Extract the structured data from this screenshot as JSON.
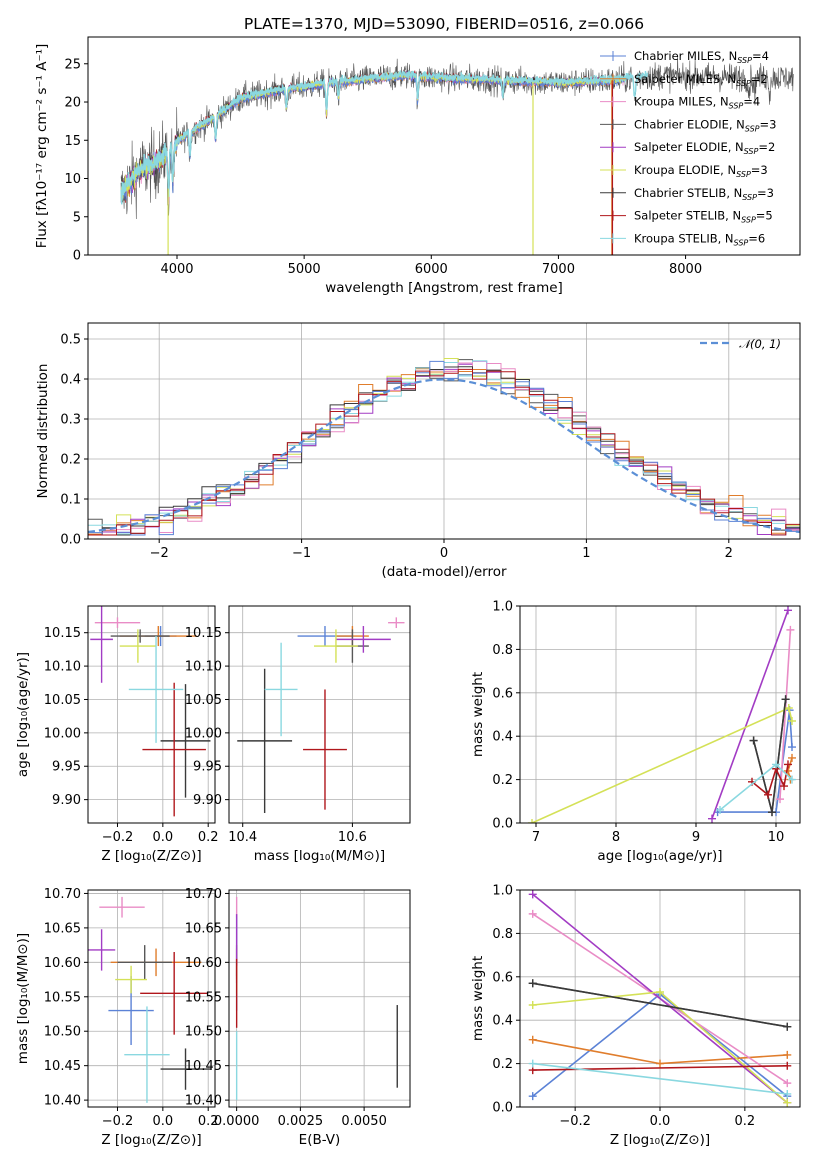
{
  "colors": [
    "#5b82d6",
    "#e07d2c",
    "#e98cc6",
    "#585858",
    "#a23cc4",
    "#d4e157",
    "#3a3a3a",
    "#b0171c",
    "#8ad8e0"
  ],
  "chart_data": [
    {
      "id": "spectrum",
      "type": "line",
      "title": "PLATE=1370, MJD=53090, FIBERID=0516, z=0.066",
      "xlabel": "wavelength [Angstrom, rest frame]",
      "ylabel": "Flux [fλ10⁻¹⁷ erg cm⁻² s⁻¹ A⁻¹]",
      "xlim": [
        3300,
        8900
      ],
      "ylim": [
        0,
        28.5
      ],
      "xticks": [
        4000,
        5000,
        6000,
        7000,
        8000
      ],
      "yticks": [
        0,
        5,
        10,
        15,
        20,
        25
      ],
      "continuum": [
        [
          3560,
          8
        ],
        [
          3700,
          11
        ],
        [
          3850,
          12
        ],
        [
          3950,
          14
        ],
        [
          4050,
          15.5
        ],
        [
          4300,
          18
        ],
        [
          4500,
          20.5
        ],
        [
          4800,
          21.5
        ],
        [
          5000,
          22
        ],
        [
          5200,
          22.5
        ],
        [
          5500,
          23
        ],
        [
          5800,
          23.5
        ],
        [
          6000,
          23.2
        ],
        [
          6300,
          23
        ],
        [
          6600,
          22.8
        ],
        [
          7000,
          22.5
        ],
        [
          7400,
          22.8
        ],
        [
          7800,
          23.5
        ],
        [
          8200,
          23.3
        ],
        [
          8500,
          23.2
        ],
        [
          8850,
          23.2
        ]
      ],
      "absorption_lines": [
        [
          3934,
          6
        ],
        [
          3968,
          5
        ],
        [
          4102,
          3
        ],
        [
          4304,
          3
        ],
        [
          4861,
          2.5
        ],
        [
          5176,
          4
        ],
        [
          5270,
          2
        ],
        [
          5893,
          3
        ],
        [
          6563,
          2
        ],
        [
          7600,
          3
        ],
        [
          8498,
          2
        ],
        [
          8542,
          2
        ],
        [
          8662,
          2
        ]
      ],
      "legend_position": "upper right",
      "legend": [
        {
          "label": "Chabrier MILES, N",
          "sub": "SSP",
          "eq": "=4"
        },
        {
          "label": "Salpeter MILES, N",
          "sub": "SSP",
          "eq": "=2"
        },
        {
          "label": "Kroupa MILES, N",
          "sub": "SSP",
          "eq": "=4"
        },
        {
          "label": "Chabrier ELODIE, N",
          "sub": "SSP",
          "eq": "=3"
        },
        {
          "label": "Salpeter ELODIE, N",
          "sub": "SSP",
          "eq": "=2"
        },
        {
          "label": "Kroupa ELODIE, N",
          "sub": "SSP",
          "eq": "=3"
        },
        {
          "label": "Chabrier STELIB, N",
          "sub": "SSP",
          "eq": "=3"
        },
        {
          "label": "Salpeter STELIB, N",
          "sub": "SSP",
          "eq": "=5"
        },
        {
          "label": "Kroupa STELIB, N",
          "sub": "SSP",
          "eq": "=6"
        }
      ]
    },
    {
      "id": "residuals",
      "type": "histogram",
      "xlabel": "(data-model)/error",
      "ylabel": "Normed distribution",
      "xlim": [
        -2.5,
        2.5
      ],
      "ylim": [
        0,
        0.54
      ],
      "xticks": [
        -2,
        -1,
        0,
        1,
        2
      ],
      "yticks": [
        0.0,
        0.1,
        0.2,
        0.3,
        0.4,
        0.5
      ],
      "bin_width": 0.1,
      "curve_label": "𝒩(0, 1)",
      "legend_position": "upper right"
    },
    {
      "id": "age-vs-Z",
      "type": "errorbar",
      "xlabel": "Z [log₁₀(Z/Z⊙)]",
      "ylabel": "age  [log₁₀(age/yr)]",
      "xlim": [
        -0.33,
        0.23
      ],
      "ylim": [
        9.865,
        10.19
      ],
      "xticks": [
        -0.2,
        0.0,
        0.2
      ],
      "yticks": [
        9.9,
        9.95,
        10.0,
        10.05,
        10.1,
        10.15
      ],
      "points": [
        {
          "x": -0.01,
          "y": 10.145,
          "xerr": 0.07,
          "yerr": 0.015
        },
        {
          "x": -0.02,
          "y": 10.145,
          "xerr": 0.17,
          "yerr": 0.015
        },
        {
          "x": -0.2,
          "y": 10.165,
          "xerr": 0.1,
          "yerr": 0.008
        },
        {
          "x": -0.1,
          "y": 10.145,
          "xerr": 0.13,
          "yerr": 0.01
        },
        {
          "x": -0.27,
          "y": 10.14,
          "xerr": 0.05,
          "yerr": 0.065
        },
        {
          "x": -0.11,
          "y": 10.13,
          "xerr": 0.08,
          "yerr": 0.025
        },
        {
          "x": 0.1,
          "y": 9.988,
          "xerr": 0.11,
          "yerr": 0.085
        },
        {
          "x": 0.05,
          "y": 9.975,
          "xerr": 0.14,
          "yerr": 0.1
        },
        {
          "x": -0.03,
          "y": 10.065,
          "xerr": 0.12,
          "yerr": 0.08
        }
      ]
    },
    {
      "id": "age-vs-mass",
      "type": "errorbar",
      "xlabel": "mass [log₁₀(M/M⊙)]",
      "xlim": [
        10.375,
        10.705
      ],
      "ylim": [
        9.865,
        10.19
      ],
      "xticks": [
        10.4,
        10.6
      ],
      "yticks": [
        9.9,
        9.95,
        10.0,
        10.05,
        10.1,
        10.15
      ],
      "points": [
        {
          "x": 10.55,
          "y": 10.145,
          "xerr": 0.05,
          "yerr": 0.015
        },
        {
          "x": 10.6,
          "y": 10.145,
          "xerr": 0.03,
          "yerr": 0.015
        },
        {
          "x": 10.68,
          "y": 10.165,
          "xerr": 0.015,
          "yerr": 0.008
        },
        {
          "x": 10.6,
          "y": 10.13,
          "xerr": 0.03,
          "yerr": 0.025
        },
        {
          "x": 10.62,
          "y": 10.14,
          "xerr": 0.05,
          "yerr": 0.02
        },
        {
          "x": 10.57,
          "y": 10.13,
          "xerr": 0.04,
          "yerr": 0.025
        },
        {
          "x": 10.44,
          "y": 9.988,
          "xerr": 0.05,
          "yerr": 0.108
        },
        {
          "x": 10.55,
          "y": 9.975,
          "xerr": 0.04,
          "yerr": 0.09
        },
        {
          "x": 10.47,
          "y": 10.065,
          "xerr": 0.03,
          "yerr": 0.07
        }
      ]
    },
    {
      "id": "mass-weight-vs-age",
      "type": "line",
      "xlabel": "age  [log₁₀(age/yr)]",
      "ylabel": "mass weight",
      "xlim": [
        6.8,
        10.3
      ],
      "ylim": [
        0,
        1.0
      ],
      "xticks": [
        7,
        8,
        9,
        10
      ],
      "yticks": [
        0.0,
        0.2,
        0.4,
        0.6,
        0.8,
        1.0
      ],
      "series": [
        {
          "points": [
            [
              9.27,
              0.05
            ],
            [
              10.0,
              0.05
            ],
            [
              10.17,
              0.52
            ],
            [
              10.2,
              0.35
            ]
          ]
        },
        {
          "points": [
            [
              10.2,
              0.3
            ],
            [
              10.15,
              0.24
            ],
            [
              10.18,
              0.2
            ]
          ]
        },
        {
          "points": [
            [
              10.05,
              0.11
            ],
            [
              10.18,
              0.89
            ]
          ]
        },
        {
          "points": [
            [
              9.72,
              0.38
            ],
            [
              9.95,
              0.05
            ],
            [
              10.12,
              0.57
            ]
          ]
        },
        {
          "points": [
            [
              9.2,
              0.02
            ],
            [
              10.15,
              0.98
            ]
          ]
        },
        {
          "points": [
            [
              6.95,
              0.0
            ],
            [
              10.16,
              0.53
            ],
            [
              10.2,
              0.47
            ]
          ]
        },
        {
          "points": [
            [
              9.72,
              0.38
            ],
            [
              9.95,
              0.05
            ],
            [
              10.12,
              0.57
            ]
          ]
        },
        {
          "points": [
            [
              9.7,
              0.19
            ],
            [
              9.9,
              0.13
            ],
            [
              10.0,
              0.25
            ],
            [
              10.1,
              0.17
            ],
            [
              10.15,
              0.27
            ]
          ]
        },
        {
          "points": [
            [
              9.3,
              0.06
            ],
            [
              10.0,
              0.27
            ],
            [
              10.2,
              0.2
            ]
          ]
        }
      ]
    },
    {
      "id": "mass-vs-Z",
      "type": "errorbar",
      "xlabel": "Z [log₁₀(Z/Z⊙)]",
      "ylabel": "mass [log₁₀(M/M⊙)]",
      "xlim": [
        -0.33,
        0.23
      ],
      "ylim": [
        10.39,
        10.705
      ],
      "xticks": [
        -0.2,
        0.0,
        0.2
      ],
      "yticks": [
        10.4,
        10.45,
        10.5,
        10.55,
        10.6,
        10.65,
        10.7
      ],
      "points": [
        {
          "x": -0.14,
          "y": 10.53,
          "xerr": 0.1,
          "yerr": 0.05
        },
        {
          "x": -0.03,
          "y": 10.6,
          "xerr": 0.2,
          "yerr": 0.02
        },
        {
          "x": -0.18,
          "y": 10.68,
          "xerr": 0.1,
          "yerr": 0.015
        },
        {
          "x": -0.08,
          "y": 10.6,
          "xerr": 0.12,
          "yerr": 0.025
        },
        {
          "x": -0.27,
          "y": 10.618,
          "xerr": 0.06,
          "yerr": 0.03
        },
        {
          "x": -0.14,
          "y": 10.575,
          "xerr": 0.07,
          "yerr": 0.02
        },
        {
          "x": 0.1,
          "y": 10.445,
          "xerr": 0.11,
          "yerr": 0.03
        },
        {
          "x": 0.05,
          "y": 10.555,
          "xerr": 0.15,
          "yerr": 0.06
        },
        {
          "x": -0.07,
          "y": 10.466,
          "xerr": 0.1,
          "yerr": 0.07
        }
      ]
    },
    {
      "id": "mass-vs-EBV",
      "type": "errorbar",
      "xlabel": "E(B-V)",
      "xlim": [
        -0.0003,
        0.0068
      ],
      "ylim": [
        10.39,
        10.705
      ],
      "xticks": [
        0.0,
        0.0025,
        0.005
      ],
      "xtick_labels": [
        "0.0000",
        "0.0025",
        "0.0050"
      ],
      "yticks": [
        10.4,
        10.45,
        10.5,
        10.55,
        10.6,
        10.65,
        10.7
      ],
      "points": [
        {
          "x": 0.0,
          "y": 10.6,
          "xerr": 0,
          "yerr": 0.07
        },
        {
          "x": 0.0,
          "y": 10.6,
          "xerr": 0,
          "yerr": 0.02
        },
        {
          "x": 0.0,
          "y": 10.68,
          "xerr": 0,
          "yerr": 0.015
        },
        {
          "x": 0.0,
          "y": 10.6,
          "xerr": 0,
          "yerr": 0.025
        },
        {
          "x": 0.0,
          "y": 10.62,
          "xerr": 0,
          "yerr": 0.05
        },
        {
          "x": 0.0,
          "y": 10.575,
          "xerr": 0,
          "yerr": 0.02
        },
        {
          "x": 0.0063,
          "y": 10.478,
          "xerr": 0,
          "yerr": 0.06
        },
        {
          "x": 0.0,
          "y": 10.555,
          "xerr": 0,
          "yerr": 0.05
        },
        {
          "x": 0.0,
          "y": 10.45,
          "xerr": 0,
          "yerr": 0.05
        }
      ]
    },
    {
      "id": "mass-weight-vs-Z",
      "type": "line",
      "xlabel": "Z [log₁₀(Z/Z⊙)]",
      "ylabel": "mass weight",
      "xlim": [
        -0.33,
        0.33
      ],
      "ylim": [
        0,
        1.0
      ],
      "xticks": [
        -0.2,
        0.0,
        0.2
      ],
      "yticks": [
        0.0,
        0.2,
        0.4,
        0.6,
        0.8,
        1.0
      ],
      "series": [
        {
          "points": [
            [
              -0.3,
              0.05
            ],
            [
              0.0,
              0.52
            ],
            [
              0.3,
              0.05
            ]
          ]
        },
        {
          "points": [
            [
              -0.3,
              0.31
            ],
            [
              0.0,
              0.2
            ],
            [
              0.3,
              0.24
            ]
          ]
        },
        {
          "points": [
            [
              -0.3,
              0.89
            ],
            [
              0.3,
              0.11
            ]
          ]
        },
        {
          "points": [
            [
              -0.3,
              0.57
            ],
            [
              0.3,
              0.37
            ]
          ]
        },
        {
          "points": [
            [
              -0.3,
              0.98
            ],
            [
              0.3,
              0.02
            ]
          ]
        },
        {
          "points": [
            [
              -0.3,
              0.47
            ],
            [
              0.0,
              0.53
            ],
            [
              0.3,
              0.02
            ]
          ]
        },
        {
          "points": [
            [
              -0.3,
              0.57
            ],
            [
              0.3,
              0.37
            ]
          ]
        },
        {
          "points": [
            [
              -0.3,
              0.17
            ],
            [
              0.3,
              0.19
            ]
          ]
        },
        {
          "points": [
            [
              -0.3,
              0.2
            ],
            [
              0.3,
              0.06
            ]
          ]
        }
      ]
    }
  ]
}
